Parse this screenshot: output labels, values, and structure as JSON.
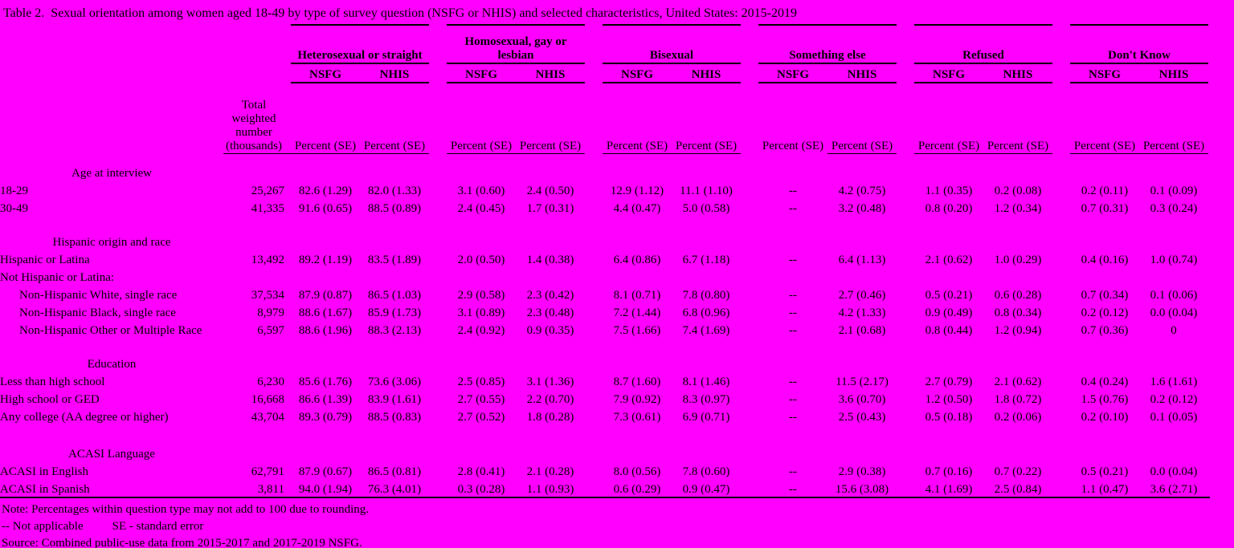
{
  "page_title": "Table 2.  Sexual orientation among women aged 18-49 by type of survey question (NSFG or NHIS) and selected characteristics, United States: 2015-2019",
  "colors": {
    "background": "#FF00FF",
    "text": "#000000"
  },
  "table": {
    "groups": [
      {
        "label": "Heterosexual or straight"
      },
      {
        "label": "Homosexual, gay or lesbian"
      },
      {
        "label": "Bisexual"
      },
      {
        "label": "Something else"
      },
      {
        "label": "Refused"
      },
      {
        "label": "Don't Know"
      }
    ],
    "survey_labels": [
      "NSFG",
      "NHIS"
    ],
    "total_header": "Total weighted number (thousands)",
    "percent_header": "Percent (SE)",
    "sections": [
      {
        "header": "Age at interview",
        "rows": [
          {
            "label": "18-29",
            "indent": false,
            "total": "25,267",
            "values": [
              "82.6 (1.29)",
              "82.0 (1.33)",
              "3.1 (0.60)",
              "2.4 (0.50)",
              "12.9 (1.12)",
              "11.1 (1.10)",
              "--",
              "4.2 (0.75)",
              "1.1 (0.35)",
              "0.2 (0.08)",
              "0.2 (0.11)",
              "0.1 (0.09)"
            ]
          },
          {
            "label": "30-49",
            "indent": false,
            "total": "41,335",
            "values": [
              "91.6 (0.65)",
              "88.5 (0.89)",
              "2.4 (0.45)",
              "1.7 (0.31)",
              "4.4 (0.47)",
              "5.0 (0.58)",
              "--",
              "3.2 (0.48)",
              "0.8 (0.20)",
              "1.2 (0.34)",
              "0.7 (0.31)",
              "0.3 (0.24)"
            ]
          }
        ]
      },
      {
        "header": "Hispanic origin and race",
        "rows": [
          {
            "label": "Hispanic or Latina",
            "indent": false,
            "total": "13,492",
            "values": [
              "89.2 (1.19)",
              "83.5 (1.89)",
              "2.0 (0.50)",
              "1.4 (0.38)",
              "6.4 (0.86)",
              "6.7 (1.18)",
              "--",
              "6.4 (1.13)",
              "2.1 (0.62)",
              "1.0 (0.29)",
              "0.4 (0.16)",
              "1.0 (0.74)"
            ]
          },
          {
            "label": "Not Hispanic or Latina:",
            "indent": false,
            "total": "",
            "values": [
              "",
              "",
              "",
              "",
              "",
              "",
              "",
              "",
              "",
              "",
              "",
              ""
            ]
          },
          {
            "label": "Non-Hispanic White, single race",
            "indent": true,
            "total": "37,534",
            "values": [
              "87.9 (0.87)",
              "86.5 (1.03)",
              "2.9 (0.58)",
              "2.3 (0.42)",
              "8.1 (0.71)",
              "7.8 (0.80)",
              "--",
              "2.7 (0.46)",
              "0.5 (0.21)",
              "0.6 (0.28)",
              "0.7 (0.34)",
              "0.1 (0.06)"
            ]
          },
          {
            "label": "Non-Hispanic Black, single race",
            "indent": true,
            "total": "8,979",
            "values": [
              "88.6 (1.67)",
              "85.9 (1.73)",
              "3.1 (0.89)",
              "2.3 (0.48)",
              "7.2 (1.44)",
              "6.8 (0.96)",
              "--",
              "4.2 (1.33)",
              "0.9 (0.49)",
              "0.8 (0.34)",
              "0.2 (0.12)",
              "0.0 (0.04)"
            ]
          },
          {
            "label": "Non-Hispanic Other or Multiple Race",
            "indent": true,
            "total": "6,597",
            "values": [
              "88.6 (1.96)",
              "88.3 (2.13)",
              "2.4 (0.92)",
              "0.9 (0.35)",
              "7.5 (1.66)",
              "7.4 (1.69)",
              "--",
              "2.1 (0.68)",
              "0.8 (0.44)",
              "1.2 (0.94)",
              "0.7 (0.36)",
              "0"
            ]
          }
        ]
      },
      {
        "header": "Education",
        "rows": [
          {
            "label": "Less than high school",
            "indent": false,
            "total": "6,230",
            "values": [
              "85.6 (1.76)",
              "73.6 (3.06)",
              "2.5 (0.85)",
              "3.1 (1.36)",
              "8.7 (1.60)",
              "8.1 (1.46)",
              "--",
              "11.5 (2.17)",
              "2.7 (0.79)",
              "2.1 (0.62)",
              "0.4 (0.24)",
              "1.6 (1.61)"
            ]
          },
          {
            "label": "High school or GED",
            "indent": false,
            "total": "16,668",
            "values": [
              "86.6 (1.39)",
              "83.9 (1.61)",
              "2.7 (0.55)",
              "2.2 (0.70)",
              "7.9 (0.92)",
              "8.3 (0.97)",
              "--",
              "3.6 (0.70)",
              "1.2 (0.50)",
              "1.8 (0.72)",
              "1.5 (0.76)",
              "0.2 (0.12)"
            ]
          },
          {
            "label": "Any college (AA degree or higher)",
            "indent": false,
            "total": "43,704",
            "values": [
              "89.3 (0.79)",
              "88.5 (0.83)",
              "2.7 (0.52)",
              "1.8 (0.28)",
              "7.3 (0.61)",
              "6.9 (0.71)",
              "--",
              "2.5 (0.43)",
              "0.5 (0.18)",
              "0.2 (0.06)",
              "0.2 (0.10)",
              "0.1 (0.05)"
            ]
          }
        ]
      },
      {
        "header": "ACASI Language",
        "rows": [
          {
            "label": "ACASI in English",
            "indent": false,
            "total": "62,791",
            "values": [
              "87.9 (0.67)",
              "86.5 (0.81)",
              "2.8 (0.41)",
              "2.1 (0.28)",
              "8.0 (0.56)",
              "7.8 (0.60)",
              "--",
              "2.9 (0.38)",
              "0.7 (0.16)",
              "0.7 (0.22)",
              "0.5 (0.21)",
              "0.0 (0.04)"
            ]
          },
          {
            "label": "ACASI in Spanish",
            "indent": false,
            "total": "3,811",
            "values": [
              "94.0 (1.94)",
              "76.3 (4.01)",
              "0.3 (0.28)",
              "1.1 (0.93)",
              "0.6 (0.29)",
              "0.9 (0.47)",
              "--",
              "15.6 (3.08)",
              "4.1 (1.69)",
              "2.5 (0.84)",
              "1.1 (0.47)",
              "3.6 (2.71)"
            ]
          }
        ]
      }
    ]
  },
  "notes": {
    "rounding": "Note: Percentages within question type may not add to 100 due to rounding.",
    "not_applicable": "-- Not applicable",
    "se": "SE - standard error",
    "source": "Source: Combined public-use data from 2015-2017 and 2017-2019 NSFG."
  }
}
